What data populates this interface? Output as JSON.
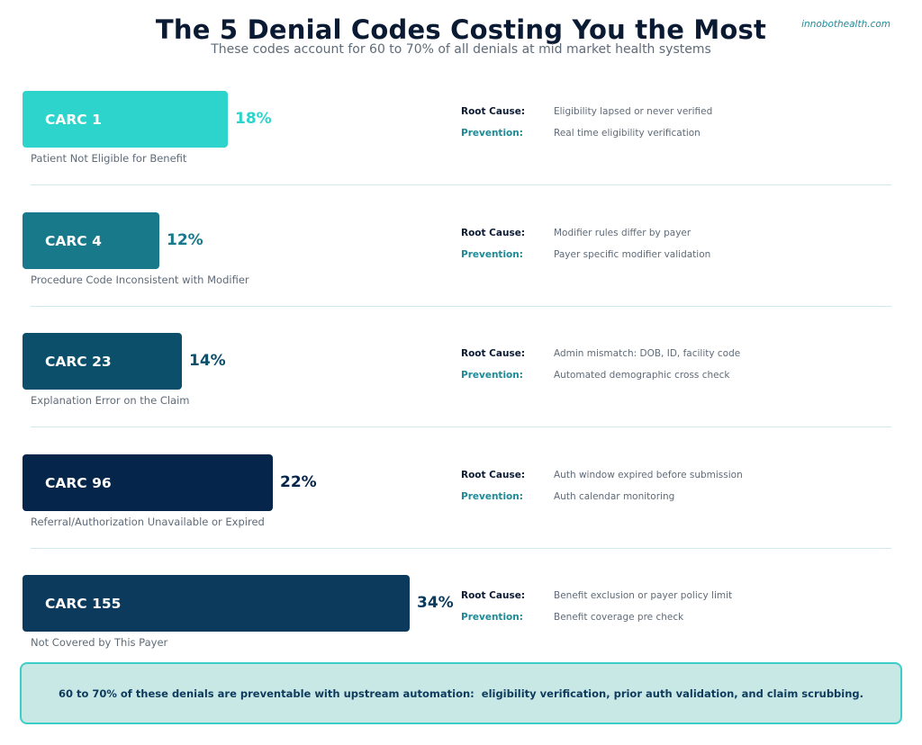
{
  "header": {
    "title": "The 5 Denial Codes Costing You the Most",
    "subtitle": "These codes account for 60 to 70% of all denials at mid market health systems",
    "brand": "innobothealth.com"
  },
  "labels": {
    "root_cause": "Root Cause:",
    "prevention": "Prevention:"
  },
  "chart_data": {
    "type": "bar",
    "orientation": "horizontal",
    "title": "The 5 Denial Codes Costing You the Most",
    "subtitle": "These codes account for 60 to 70% of all denials at mid market health systems",
    "categories": [
      "CARC 1",
      "CARC 4",
      "CARC 23",
      "CARC 96",
      "CARC 155"
    ],
    "values": [
      18,
      12,
      14,
      22,
      34
    ],
    "value_labels": [
      "18%",
      "12%",
      "14%",
      "22%",
      "34%"
    ],
    "unit": "%",
    "xlim": [
      0,
      34
    ],
    "bar_colors": [
      "#2dd4cb",
      "#17798a",
      "#0c4f6a",
      "#05254a",
      "#0b3a5c"
    ],
    "label_colors": [
      "#2dd4cb",
      "#17798a",
      "#0c4f6a",
      "#05254a",
      "#0b3a5c"
    ]
  },
  "rows": [
    {
      "code": "CARC 1",
      "percent": "18%",
      "description": "Patient Not Eligible for Benefit",
      "root_cause": "Eligibility lapsed or never verified",
      "prevention": "Real time eligibility verification"
    },
    {
      "code": "CARC 4",
      "percent": "12%",
      "description": "Procedure Code Inconsistent with Modifier",
      "root_cause": "Modifier rules differ by payer",
      "prevention": "Payer specific modifier validation"
    },
    {
      "code": "CARC 23",
      "percent": "14%",
      "description": "Explanation Error on the Claim",
      "root_cause": "Admin mismatch: DOB, ID, facility code",
      "prevention": "Automated demographic cross check"
    },
    {
      "code": "CARC 96",
      "percent": "22%",
      "description": "Referral/Authorization Unavailable or Expired",
      "root_cause": "Auth window expired before submission",
      "prevention": "Auth calendar monitoring"
    },
    {
      "code": "CARC 155",
      "percent": "34%",
      "description": "Not Covered by This Payer",
      "root_cause": "Benefit exclusion or payer policy limit",
      "prevention": "Benefit coverage pre check"
    }
  ],
  "callout": {
    "text": "60 to 70% of these denials are preventable with upstream automation:  eligibility verification, prior auth validation, and claim scrubbing."
  }
}
